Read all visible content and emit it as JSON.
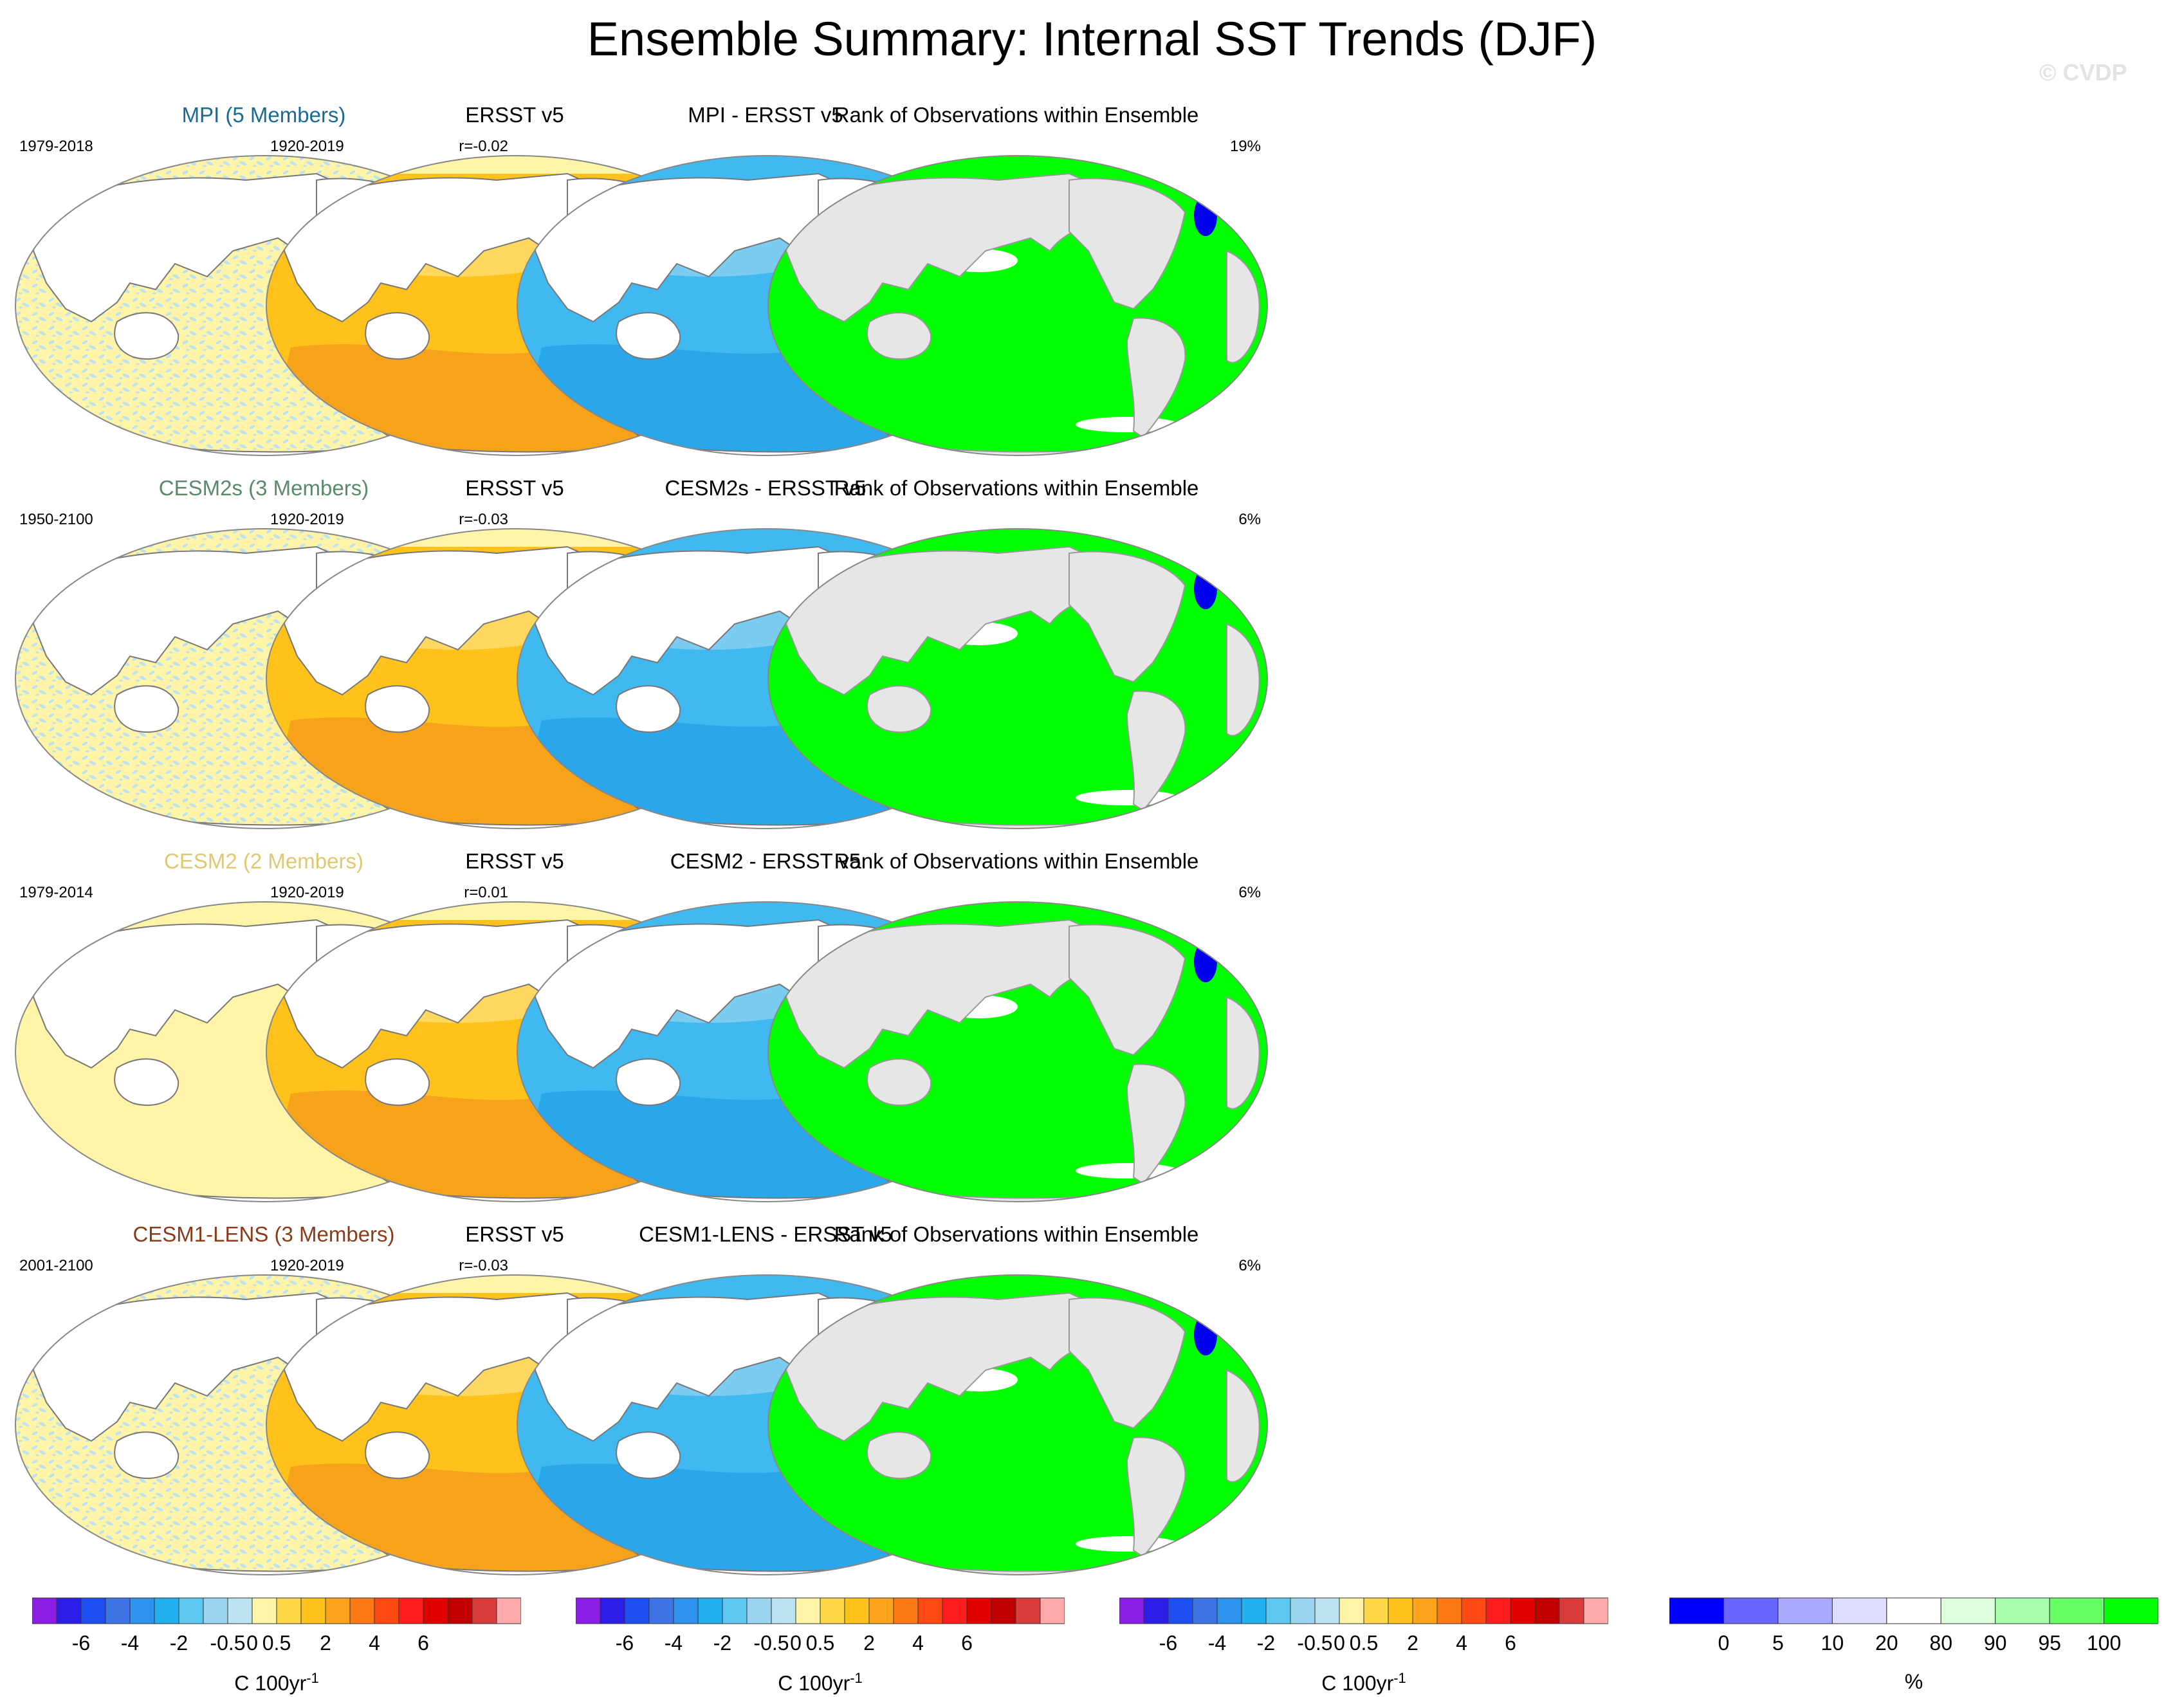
{
  "figure": {
    "title": "Ensemble Summary: Internal SST Trends (DJF)",
    "watermark": "© CVDP"
  },
  "colors": {
    "model_light_blue": "#bde3f2",
    "model_light_yellow": "#fff4a8",
    "obs_orange": "#ffc21a",
    "obs_dark_orange": "#f7a21b",
    "diff_blue": "#40b8f0",
    "diff_dark_blue": "#2aa6ea",
    "rank_green": "#00ff00",
    "rank_blue": "#0000ee",
    "land_white": "#ffffff",
    "land_grey": "#e6e6e6"
  },
  "rows": [
    {
      "model": {
        "title": "MPI (5 Members)",
        "title_color": "#1a6a96",
        "period": "1979-2018",
        "r": "r=-0.02",
        "pattern": "speckle"
      },
      "obs": {
        "title": "ERSST v5",
        "period": "1920-2019"
      },
      "diff": {
        "title": "MPI - ERSST v5"
      },
      "rank": {
        "title": "Rank of Observations within Ensemble",
        "pct": "19%"
      }
    },
    {
      "model": {
        "title": "CESM2s (3 Members)",
        "title_color": "#5b8a6a",
        "period": "1950-2100",
        "r": "r=-0.03",
        "pattern": "speckle"
      },
      "obs": {
        "title": "ERSST v5",
        "period": "1920-2019"
      },
      "diff": {
        "title": "CESM2s - ERSST v5"
      },
      "rank": {
        "title": "Rank of Observations within Ensemble",
        "pct": "6%"
      }
    },
    {
      "model": {
        "title": "CESM2 (2 Members)",
        "title_color": "#e0c873",
        "period": "1979-2014",
        "r": "r=0.01",
        "pattern": "flat"
      },
      "obs": {
        "title": "ERSST v5",
        "period": "1920-2019"
      },
      "diff": {
        "title": "CESM2 - ERSST v5"
      },
      "rank": {
        "title": "Rank of Observations within Ensemble",
        "pct": "6%"
      }
    },
    {
      "model": {
        "title": "CESM1-LENS (3 Members)",
        "title_color": "#8a3c1a",
        "period": "2001-2100",
        "r": "r=-0.03",
        "pattern": "speckle"
      },
      "obs": {
        "title": "ERSST v5",
        "period": "1920-2019"
      },
      "diff": {
        "title": "CESM1-LENS - ERSST v5"
      },
      "rank": {
        "title": "Rank of Observations within Ensemble",
        "pct": "6%"
      }
    }
  ],
  "colorbars": {
    "trend": {
      "label": "C 100yr",
      "label_exponent": "-1",
      "ticks": [
        "-6",
        "-4",
        "-2",
        "-0.5",
        "0",
        "0.5",
        "2",
        "4",
        "6"
      ],
      "colors": [
        "#8c1ee6",
        "#2c1ee6",
        "#1e4ff0",
        "#3d74e6",
        "#2d93ec",
        "#23b0f0",
        "#5cc8f2",
        "#9ad6f0",
        "#bce3f2",
        "#fff4a8",
        "#ffd84a",
        "#ffc21a",
        "#ffa41a",
        "#ff7a14",
        "#ff4a14",
        "#ff1e1e",
        "#e00000",
        "#c00000",
        "#d83c3c",
        "#ffaaaa"
      ]
    },
    "rank": {
      "label": "%",
      "ticks": [
        "0",
        "5",
        "10",
        "20",
        "80",
        "90",
        "95",
        "100"
      ],
      "colors": [
        "#0000ff",
        "#6666ff",
        "#a9a9ff",
        "#ddddff",
        "#ffffff",
        "#ddffdd",
        "#a9ffa9",
        "#66ff66",
        "#00ff00"
      ]
    }
  },
  "chart_data": [
    {
      "type": "heatmap",
      "title": "MPI (5 Members)",
      "subtitle_left": "1979-2018",
      "subtitle_right": "r=-0.02",
      "units": "C 100yr-1",
      "values_note": "noisy alternating -0.5 to 0.5 pattern"
    },
    {
      "type": "heatmap",
      "title": "ERSST v5",
      "subtitle_left": "1920-2019",
      "units": "C 100yr-1",
      "values_note": "mostly 0.5 to 2 warming, cooling near N. Atlantic"
    },
    {
      "type": "heatmap",
      "title": "MPI - ERSST v5",
      "units": "C 100yr-1",
      "values_note": "mostly -2 to -0.5, positive near N. Atlantic"
    },
    {
      "type": "heatmap",
      "title": "Rank of Observations within Ensemble",
      "subtitle_right": "19%",
      "units": "%",
      "values_note": "mostly 95-100 percentile"
    }
  ]
}
